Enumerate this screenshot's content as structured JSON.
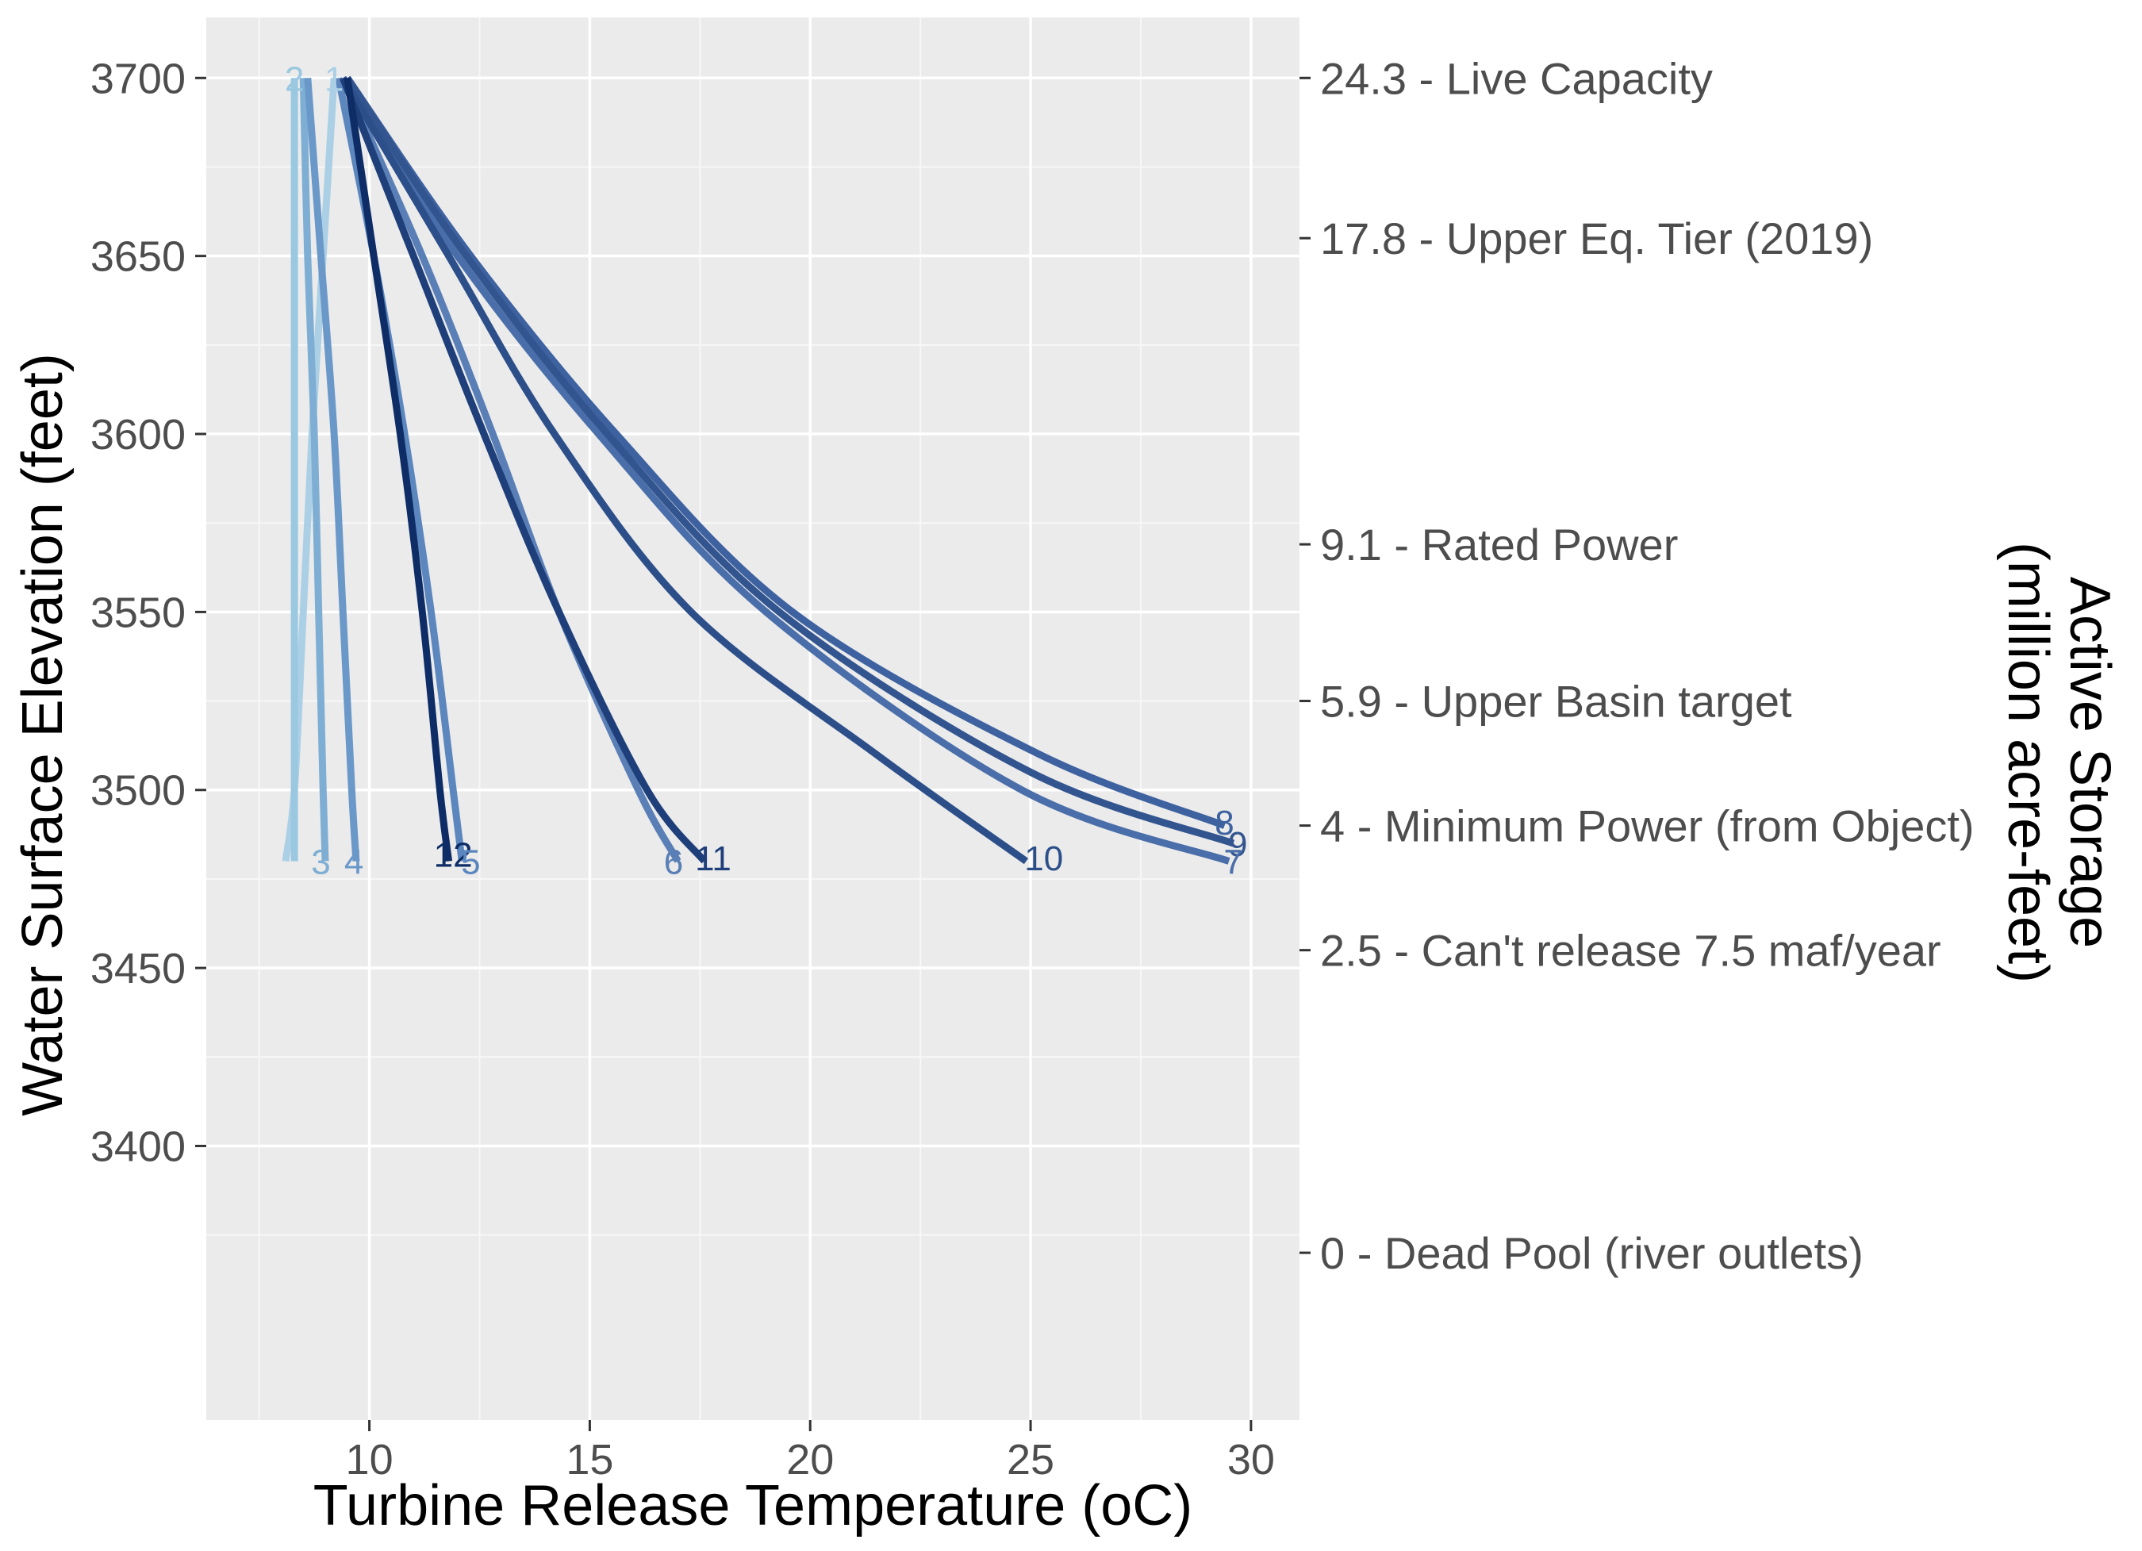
{
  "chart_data": {
    "type": "line",
    "title": "",
    "xlabel": "Turbine Release Temperature (oC)",
    "ylabel": "Water Surface Elevation (feet)",
    "y2label_line1": "Active Storage",
    "y2label_line2": "(million acre-feet)",
    "xlim": [
      6.3,
      31.1
    ],
    "ylim": [
      3323,
      3717
    ],
    "grid": true,
    "legend": "none",
    "x_ticks": [
      10,
      15,
      20,
      25,
      30
    ],
    "y_ticks": [
      3400,
      3450,
      3500,
      3550,
      3600,
      3650,
      3700
    ],
    "secondary_axis": [
      {
        "elevation": 3700,
        "label": "24.3 - Live Capacity"
      },
      {
        "elevation": 3655,
        "label": "17.8 - Upper Eq. Tier (2019)"
      },
      {
        "elevation": 3569,
        "label": "9.1 - Rated Power"
      },
      {
        "elevation": 3525,
        "label": "5.9 - Upper Basin target"
      },
      {
        "elevation": 3490,
        "label": "4 - Minimum Power (from Object)"
      },
      {
        "elevation": 3455,
        "label": "2.5 - Can't release 7.5 maf/year"
      },
      {
        "elevation": 3370,
        "label": "0 - Dead Pool (river outlets)"
      }
    ],
    "series": [
      {
        "name": "1",
        "color": "#abd0e6",
        "points": [
          [
            9.2,
            3700
          ],
          [
            8.95,
            3650
          ],
          [
            8.7,
            3600
          ],
          [
            8.5,
            3550
          ],
          [
            8.3,
            3500
          ],
          [
            8.1,
            3480
          ]
        ]
      },
      {
        "name": "2",
        "color": "#9ac8e0",
        "points": [
          [
            8.3,
            3700
          ],
          [
            8.3,
            3650
          ],
          [
            8.3,
            3600
          ],
          [
            8.3,
            3550
          ],
          [
            8.3,
            3500
          ],
          [
            8.3,
            3480
          ]
        ]
      },
      {
        "name": "3",
        "color": "#7eaed3",
        "points": [
          [
            8.5,
            3700
          ],
          [
            8.6,
            3650
          ],
          [
            8.75,
            3600
          ],
          [
            8.85,
            3550
          ],
          [
            8.95,
            3500
          ],
          [
            9.0,
            3480
          ]
        ]
      },
      {
        "name": "4",
        "color": "#6a98c9",
        "points": [
          [
            8.6,
            3700
          ],
          [
            8.9,
            3650
          ],
          [
            9.2,
            3600
          ],
          [
            9.4,
            3550
          ],
          [
            9.6,
            3500
          ],
          [
            9.7,
            3480
          ]
        ]
      },
      {
        "name": "5",
        "color": "#5b86be",
        "points": [
          [
            9.3,
            3700
          ],
          [
            10.1,
            3650
          ],
          [
            10.8,
            3600
          ],
          [
            11.4,
            3550
          ],
          [
            11.9,
            3500
          ],
          [
            12.1,
            3480
          ]
        ]
      },
      {
        "name": "6",
        "color": "#5a7fb6",
        "points": [
          [
            9.4,
            3700
          ],
          [
            11.2,
            3650
          ],
          [
            12.8,
            3600
          ],
          [
            14.3,
            3550
          ],
          [
            16.1,
            3500
          ],
          [
            17.0,
            3480
          ]
        ]
      },
      {
        "name": "7",
        "color": "#4a6ea9",
        "points": [
          [
            9.4,
            3700
          ],
          [
            12.0,
            3650
          ],
          [
            15.2,
            3600
          ],
          [
            19.0,
            3550
          ],
          [
            24.8,
            3500
          ],
          [
            29.5,
            3480
          ]
        ]
      },
      {
        "name": "8",
        "color": "#3e62a0",
        "points": [
          [
            9.5,
            3700
          ],
          [
            12.3,
            3650
          ],
          [
            15.6,
            3600
          ],
          [
            19.6,
            3550
          ],
          [
            25.2,
            3510
          ],
          [
            29.4,
            3490
          ]
        ]
      },
      {
        "name": "9",
        "color": "#33558f",
        "points": [
          [
            9.5,
            3700
          ],
          [
            12.2,
            3650
          ],
          [
            15.4,
            3600
          ],
          [
            19.3,
            3550
          ],
          [
            25.0,
            3505
          ],
          [
            29.6,
            3485
          ]
        ]
      },
      {
        "name": "10",
        "color": "#2c4f8a",
        "points": [
          [
            9.4,
            3700
          ],
          [
            11.8,
            3650
          ],
          [
            14.2,
            3600
          ],
          [
            17.3,
            3550
          ],
          [
            21.5,
            3510
          ],
          [
            24.9,
            3480
          ]
        ]
      },
      {
        "name": "11",
        "color": "#1f3f7a",
        "points": [
          [
            9.4,
            3700
          ],
          [
            11.0,
            3650
          ],
          [
            12.6,
            3600
          ],
          [
            14.3,
            3550
          ],
          [
            16.3,
            3500
          ],
          [
            17.6,
            3480
          ]
        ]
      },
      {
        "name": "12",
        "color": "#0e2d66",
        "points": [
          [
            9.5,
            3700
          ],
          [
            10.1,
            3650
          ],
          [
            10.7,
            3600
          ],
          [
            11.2,
            3550
          ],
          [
            11.6,
            3500
          ],
          [
            11.8,
            3480
          ]
        ]
      }
    ],
    "bottom_labels": [
      {
        "text": "3",
        "x": 8.9,
        "y": 3480,
        "color": "#7eaed3"
      },
      {
        "text": "4",
        "x": 9.65,
        "y": 3480,
        "color": "#6a98c9"
      },
      {
        "text": "12",
        "x": 11.9,
        "y": 3482,
        "color": "#0e2d66"
      },
      {
        "text": "5",
        "x": 12.3,
        "y": 3480,
        "color": "#5b86be"
      },
      {
        "text": "6",
        "x": 16.9,
        "y": 3480,
        "color": "#5a7fb6"
      },
      {
        "text": "11",
        "x": 17.8,
        "y": 3481,
        "color": "#1f3f7a"
      },
      {
        "text": "10",
        "x": 25.3,
        "y": 3481,
        "color": "#2c4f8a"
      },
      {
        "text": "8",
        "x": 29.4,
        "y": 3491,
        "color": "#3e62a0"
      },
      {
        "text": "9",
        "x": 29.7,
        "y": 3485,
        "color": "#33558f"
      },
      {
        "text": "7",
        "x": 29.6,
        "y": 3480,
        "color": "#4a6ea9"
      }
    ],
    "top_labels": [
      {
        "text": "2",
        "x": 8.3,
        "y": 3700,
        "color": "#9ac8e0"
      },
      {
        "text": "1",
        "x": 9.2,
        "y": 3700,
        "color": "#abd0e6"
      }
    ]
  }
}
